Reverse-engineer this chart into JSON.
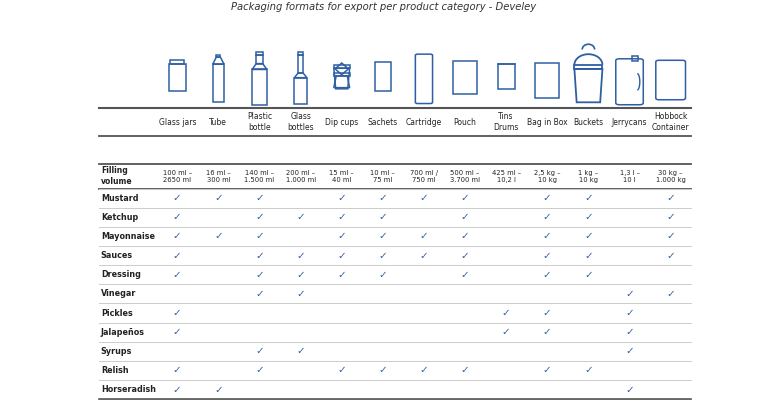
{
  "columns": [
    "Glass jars",
    "Tube",
    "Plastic\nbottle",
    "Glass\nbottles",
    "Dip cups",
    "Sachets",
    "Cartridge",
    "Pouch",
    "Tins\nDrums",
    "Bag in Box",
    "Buckets",
    "Jerrycans",
    "Hobbock\nContainer"
  ],
  "filling_volumes": [
    "100 ml –\n2650 ml",
    "16 ml –\n300 ml",
    "140 ml –\n1.500 ml",
    "200 ml –\n1.000 ml",
    "15 ml –\n40 ml",
    "10 ml –\n75 ml",
    "700 ml /\n750 ml",
    "500 ml –\n3.700 ml",
    "425 ml –\n10,2 l",
    "2,5 kg –\n10 kg",
    "1 kg –\n10 kg",
    "1,3 l –\n10 l",
    "30 kg –\n1.000 kg"
  ],
  "rows": [
    {
      "label": "Mustard",
      "checks": [
        1,
        1,
        1,
        0,
        1,
        1,
        1,
        1,
        0,
        1,
        1,
        0,
        1
      ]
    },
    {
      "label": "Ketchup",
      "checks": [
        1,
        0,
        1,
        1,
        1,
        1,
        0,
        1,
        0,
        1,
        1,
        0,
        1
      ]
    },
    {
      "label": "Mayonnaise",
      "checks": [
        1,
        1,
        1,
        0,
        1,
        1,
        1,
        1,
        0,
        1,
        1,
        0,
        1
      ]
    },
    {
      "label": "Sauces",
      "checks": [
        1,
        0,
        1,
        1,
        1,
        1,
        1,
        1,
        0,
        1,
        1,
        0,
        1
      ]
    },
    {
      "label": "Dressing",
      "checks": [
        1,
        0,
        1,
        1,
        1,
        1,
        0,
        1,
        0,
        1,
        1,
        0,
        0
      ]
    },
    {
      "label": "Vinegar",
      "checks": [
        0,
        0,
        1,
        1,
        0,
        0,
        0,
        0,
        0,
        0,
        0,
        1,
        1
      ]
    },
    {
      "label": "Pickles",
      "checks": [
        1,
        0,
        0,
        0,
        0,
        0,
        0,
        0,
        1,
        1,
        0,
        1,
        0
      ]
    },
    {
      "label": "Jalapeños",
      "checks": [
        1,
        0,
        0,
        0,
        0,
        0,
        0,
        0,
        1,
        1,
        0,
        1,
        0
      ]
    },
    {
      "label": "Syrups",
      "checks": [
        0,
        0,
        1,
        1,
        0,
        0,
        0,
        0,
        0,
        0,
        0,
        1,
        0
      ]
    },
    {
      "label": "Relish",
      "checks": [
        1,
        0,
        1,
        0,
        1,
        1,
        1,
        1,
        0,
        1,
        1,
        0,
        0
      ]
    },
    {
      "label": "Horseradish",
      "checks": [
        1,
        1,
        0,
        0,
        0,
        0,
        0,
        0,
        0,
        0,
        0,
        1,
        0
      ]
    }
  ],
  "check_color": "#2e5fa3",
  "line_color": "#cccccc",
  "heavy_line_color": "#555555",
  "bg_color": "#ffffff"
}
